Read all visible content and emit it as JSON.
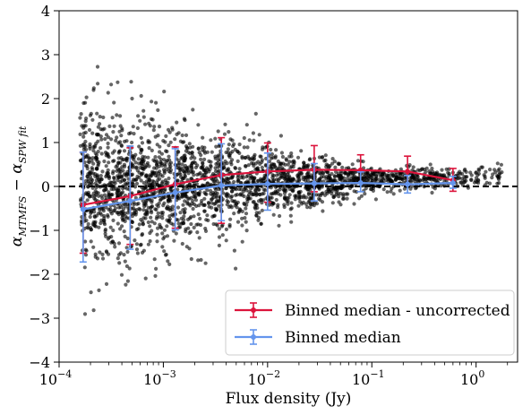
{
  "chart_data": {
    "type": "scatter",
    "x_scale": "log",
    "xlabel": "Flux density (Jy)",
    "ylabel": "α_MTMFS − α_SPW fit",
    "xlim": [
      0.0001,
      2.5
    ],
    "ylim": [
      -4,
      4
    ],
    "x_ticks": [
      {
        "value": 0.0001,
        "base": "10",
        "exp": "−4"
      },
      {
        "value": 0.001,
        "base": "10",
        "exp": "−3"
      },
      {
        "value": 0.01,
        "base": "10",
        "exp": "−2"
      },
      {
        "value": 0.1,
        "base": "10",
        "exp": "−1"
      },
      {
        "value": 1,
        "base": "10",
        "exp": "0"
      }
    ],
    "y_ticks": [
      "4",
      "3",
      "2",
      "1",
      "0",
      "−1",
      "−2",
      "−3",
      "−4"
    ],
    "reference_line_y": 0,
    "reference_line_style": "dashed",
    "series": [
      {
        "name": "Binned median - uncorrected",
        "color": "#dc143c",
        "x": [
          0.00017,
          0.00048,
          0.0013,
          0.0036,
          0.01,
          0.028,
          0.078,
          0.22,
          0.6
        ],
        "y": [
          -0.42,
          -0.22,
          0.05,
          0.26,
          0.34,
          0.38,
          0.37,
          0.34,
          0.14
        ],
        "yerr_low": [
          1.1,
          1.1,
          1.0,
          1.1,
          0.7,
          0.5,
          0.3,
          0.3,
          0.25
        ],
        "yerr_high": [
          1.2,
          1.1,
          0.85,
          0.85,
          0.65,
          0.55,
          0.35,
          0.35,
          0.27
        ]
      },
      {
        "name": "Binned median",
        "color": "#6495ed",
        "x": [
          0.00017,
          0.00048,
          0.0013,
          0.0036,
          0.01,
          0.028,
          0.078,
          0.22,
          0.6
        ],
        "y": [
          -0.52,
          -0.33,
          -0.14,
          0.02,
          0.06,
          0.07,
          0.08,
          0.05,
          0.08
        ],
        "yerr_low": [
          1.2,
          1.1,
          0.85,
          0.8,
          0.6,
          0.4,
          0.2,
          0.2,
          0.12
        ],
        "yerr_high": [
          1.3,
          1.25,
          1.0,
          0.95,
          0.7,
          0.45,
          0.25,
          0.2,
          0.15
        ]
      }
    ],
    "scatter_color": "#000000",
    "legend_placement": "lower-right",
    "grid": false
  }
}
